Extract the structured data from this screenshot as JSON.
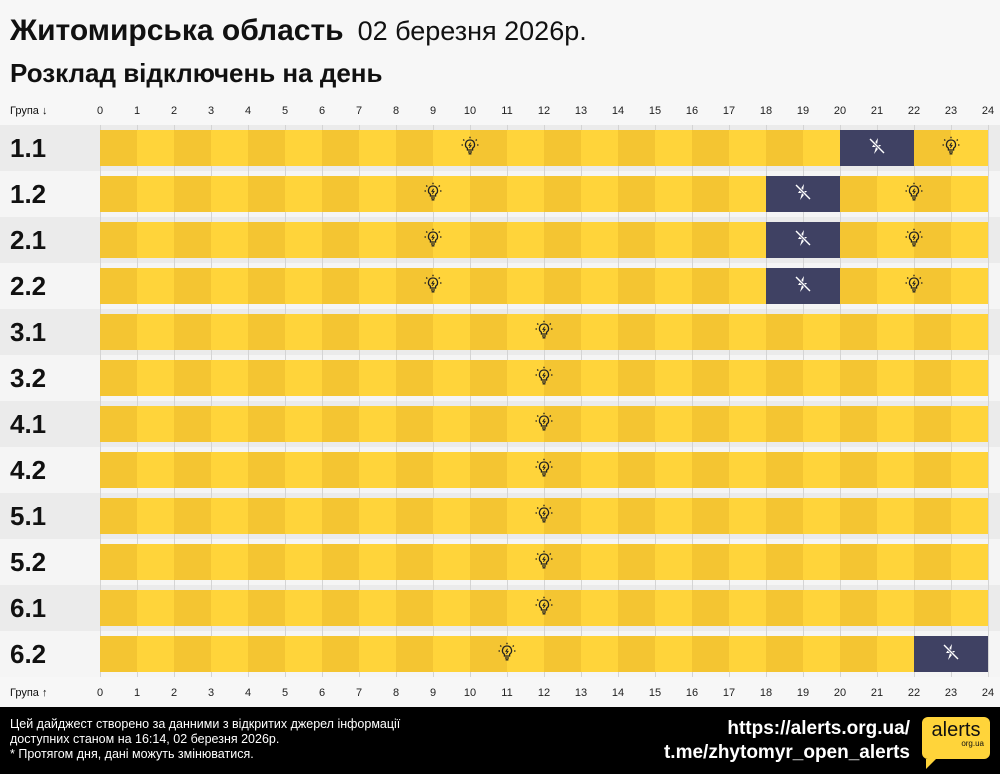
{
  "header": {
    "region": "Житомирська область",
    "date": "02 березня 2026р.",
    "subtitle": "Розклад відключень на день"
  },
  "axis": {
    "top_label": "Група ↓",
    "bottom_label": "Група ↑",
    "hours": [
      "0",
      "1",
      "2",
      "3",
      "4",
      "5",
      "6",
      "7",
      "8",
      "9",
      "10",
      "11",
      "12",
      "13",
      "14",
      "15",
      "16",
      "17",
      "18",
      "19",
      "20",
      "21",
      "22",
      "23",
      "24"
    ]
  },
  "colors": {
    "on_dark": "#f4c532",
    "on_light": "#ffd43a",
    "off": "#3f4163",
    "row_a": "#ebebeb",
    "row_b": "#f5f5f5"
  },
  "groups": [
    {
      "label": "1.1",
      "segments": [
        {
          "from": 0,
          "to": 20,
          "state": "on"
        },
        {
          "from": 20,
          "to": 22,
          "state": "off"
        },
        {
          "from": 22,
          "to": 24,
          "state": "on"
        }
      ]
    },
    {
      "label": "1.2",
      "segments": [
        {
          "from": 0,
          "to": 18,
          "state": "on"
        },
        {
          "from": 18,
          "to": 20,
          "state": "off"
        },
        {
          "from": 20,
          "to": 24,
          "state": "on"
        }
      ]
    },
    {
      "label": "2.1",
      "segments": [
        {
          "from": 0,
          "to": 18,
          "state": "on"
        },
        {
          "from": 18,
          "to": 20,
          "state": "off"
        },
        {
          "from": 20,
          "to": 24,
          "state": "on"
        }
      ]
    },
    {
      "label": "2.2",
      "segments": [
        {
          "from": 0,
          "to": 18,
          "state": "on"
        },
        {
          "from": 18,
          "to": 20,
          "state": "off"
        },
        {
          "from": 20,
          "to": 24,
          "state": "on"
        }
      ]
    },
    {
      "label": "3.1",
      "segments": [
        {
          "from": 0,
          "to": 24,
          "state": "on"
        }
      ]
    },
    {
      "label": "3.2",
      "segments": [
        {
          "from": 0,
          "to": 24,
          "state": "on"
        }
      ]
    },
    {
      "label": "4.1",
      "segments": [
        {
          "from": 0,
          "to": 24,
          "state": "on"
        }
      ]
    },
    {
      "label": "4.2",
      "segments": [
        {
          "from": 0,
          "to": 24,
          "state": "on"
        }
      ]
    },
    {
      "label": "5.1",
      "segments": [
        {
          "from": 0,
          "to": 24,
          "state": "on"
        }
      ]
    },
    {
      "label": "5.2",
      "segments": [
        {
          "from": 0,
          "to": 24,
          "state": "on"
        }
      ]
    },
    {
      "label": "6.1",
      "segments": [
        {
          "from": 0,
          "to": 24,
          "state": "on"
        }
      ]
    },
    {
      "label": "6.2",
      "segments": [
        {
          "from": 0,
          "to": 22,
          "state": "on"
        },
        {
          "from": 22,
          "to": 24,
          "state": "off"
        }
      ]
    }
  ],
  "footer": {
    "line1": "Цей дайджест створено за данними з відкритих джерел інформації",
    "line2": "доступних станом на 16:14, 02 березня 2026р.",
    "line3": "* Протягом дня, дані можуть змінюватися.",
    "site": "https://alerts.org.ua/",
    "telegram": "t.me/zhytomyr_open_alerts",
    "logo_text": "alerts",
    "logo_sub": "org.ua"
  }
}
